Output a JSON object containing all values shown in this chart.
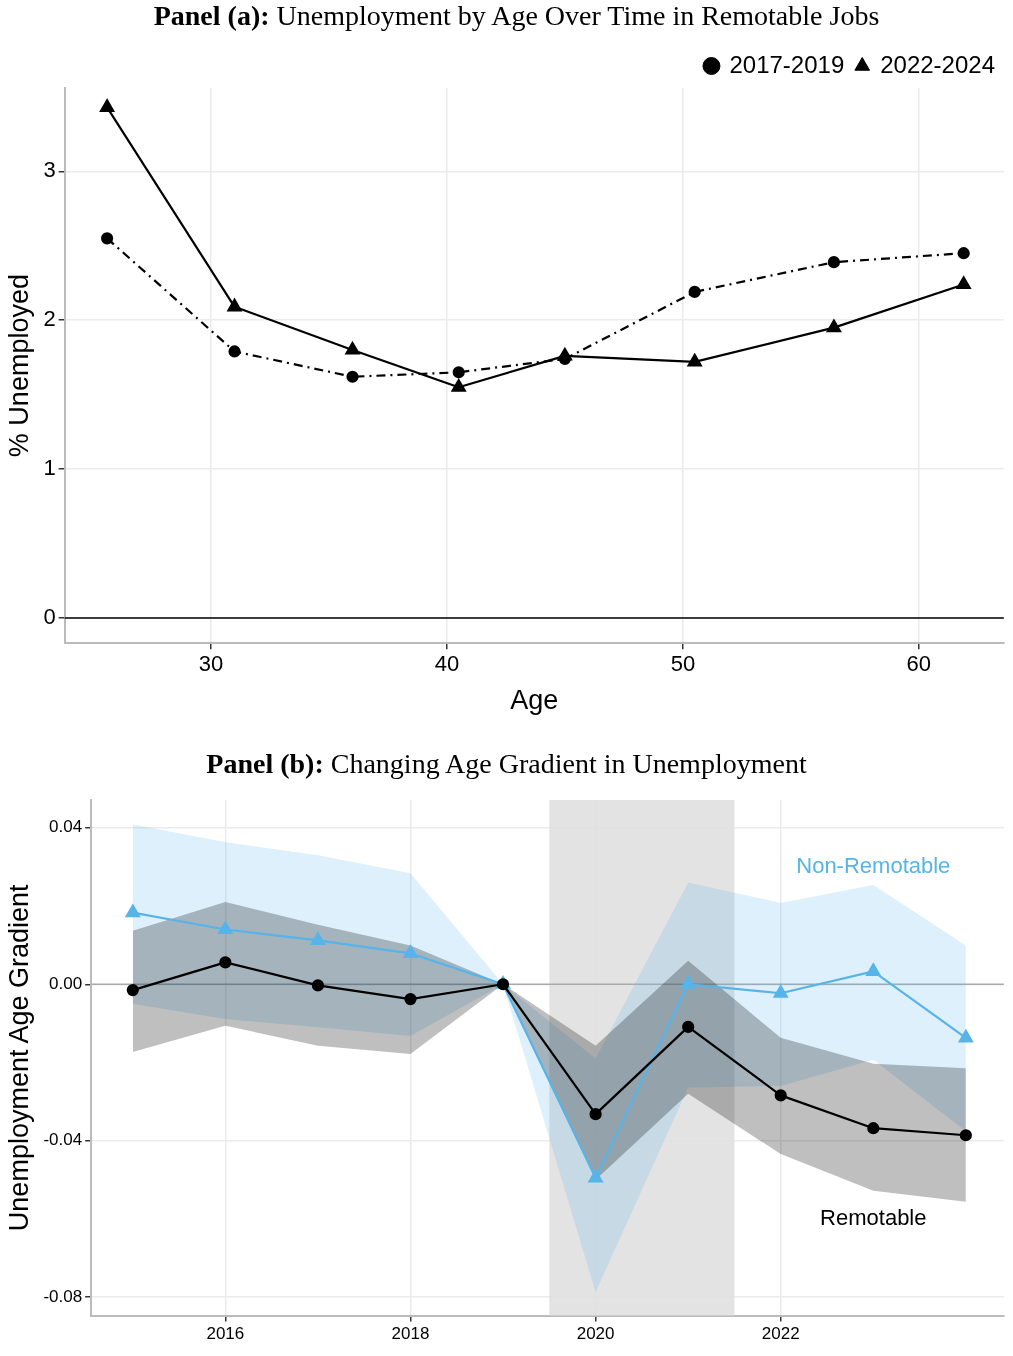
{
  "chart_data": [
    {
      "type": "line",
      "title": "Panel (a): Unemployment by Age Over Time in Remotable Jobs",
      "xlabel": "Age",
      "ylabel": "% Unemployed",
      "xlim": [
        23.8,
        63.6
      ],
      "ylim": [
        -0.17,
        3.56
      ],
      "xticks": [
        30,
        40,
        50,
        60
      ],
      "yticks": [
        0,
        1,
        2,
        3
      ],
      "grid": true,
      "legend": "top right",
      "series": [
        {
          "name": "2017-2019",
          "color": "#000000",
          "marker": "circle",
          "line_style": "dashdot",
          "x": [
            25.6,
            31.0,
            36.0,
            40.5,
            45.0,
            50.5,
            56.4,
            61.9
          ],
          "values": [
            2.55,
            1.79,
            1.62,
            1.65,
            1.74,
            2.19,
            2.39,
            2.45
          ]
        },
        {
          "name": "2022-2024",
          "color": "#000000",
          "marker": "triangle",
          "line_style": "solid",
          "x": [
            25.6,
            31.0,
            36.0,
            40.5,
            45.0,
            50.5,
            56.4,
            61.9
          ],
          "values": [
            3.43,
            2.09,
            1.8,
            1.55,
            1.76,
            1.72,
            1.95,
            2.24
          ]
        }
      ],
      "ref_lines": [
        {
          "axis": "y",
          "value": 0,
          "color": "#000000"
        }
      ]
    },
    {
      "type": "line",
      "title": "Panel (b): Changing Age Gradient in Unemployment",
      "ylabel": "Unemployment Age Gradient",
      "xlim": [
        2014.55,
        2024.41
      ],
      "ylim": [
        -0.0847,
        0.0471
      ],
      "xticks": [
        2016,
        2018,
        2020,
        2022
      ],
      "yticks": [
        0.04,
        {
          "value": 0,
          "label": "0.00"
        },
        -0.04,
        -0.08
      ],
      "grid": true,
      "x": [
        2015,
        2016,
        2017,
        2018,
        2019,
        2020,
        2021,
        2022,
        2023,
        2024
      ],
      "series": [
        {
          "name": "Remotable",
          "color": "#000000",
          "marker": "circle",
          "values": [
            -0.0015,
            0.0056,
            -0.0003,
            -0.0038,
            0,
            -0.0332,
            -0.0109,
            -0.0284,
            -0.0368,
            -0.0386
          ],
          "lower": [
            -0.0173,
            -0.0106,
            -0.0157,
            -0.0178,
            0,
            -0.05,
            -0.028,
            -0.0434,
            -0.0528,
            -0.0556
          ],
          "upper": [
            0.0137,
            0.021,
            0.0152,
            0.0099,
            0,
            -0.0157,
            0.006,
            -0.0137,
            -0.0203,
            -0.0215
          ]
        },
        {
          "name": "Non-Remotable",
          "color": "#56b4e9",
          "marker": "triangle",
          "values": [
            0.0183,
            0.014,
            0.0112,
            0.0079,
            0,
            -0.0495,
            0,
            -0.0023,
            0.0033,
            -0.0137
          ],
          "lower": [
            -0.005,
            -0.0089,
            -0.011,
            -0.0132,
            0,
            -0.0787,
            -0.0264,
            -0.026,
            -0.0193,
            -0.0376
          ],
          "upper": [
            0.0409,
            0.0363,
            0.033,
            0.0284,
            0,
            -0.019,
            0.026,
            0.0208,
            0.0254,
            0.0099
          ]
        }
      ],
      "ref_lines": [
        {
          "axis": "y",
          "value": 0,
          "color": "#aaaaaa"
        }
      ],
      "bands": [
        {
          "axis": "x",
          "from": 2019.5,
          "to": 2021.5,
          "color": "#e0e0e0"
        }
      ]
    }
  ]
}
